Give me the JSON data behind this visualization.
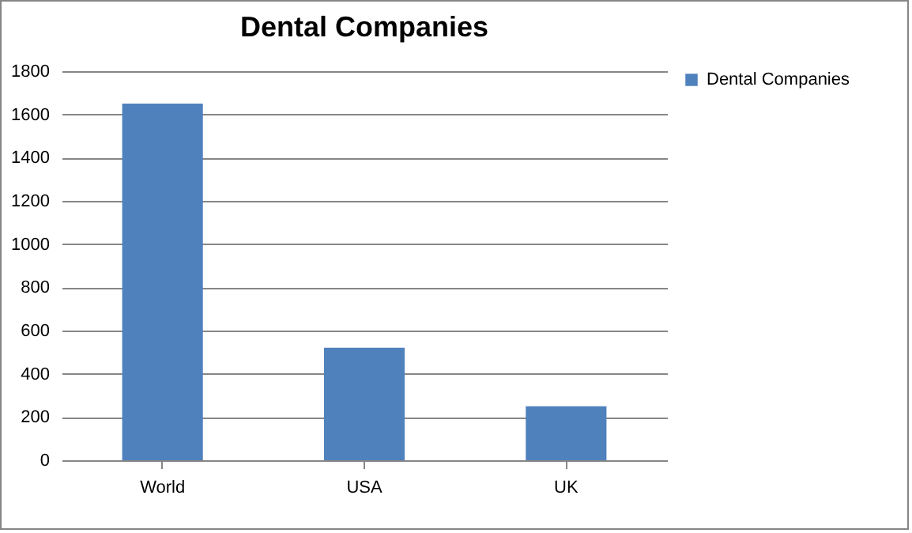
{
  "chart_data": {
    "type": "bar",
    "title": "Dental Companies",
    "categories": [
      "World",
      "USA",
      "UK"
    ],
    "series": [
      {
        "name": "Dental Companies",
        "color": "#4f81bd",
        "values": [
          1650,
          520,
          250
        ]
      }
    ],
    "ylim": [
      0,
      1800
    ],
    "yticks": [
      0,
      200,
      400,
      600,
      800,
      1000,
      1200,
      1400,
      1600,
      1800
    ],
    "grid": "y",
    "legend": "right"
  }
}
